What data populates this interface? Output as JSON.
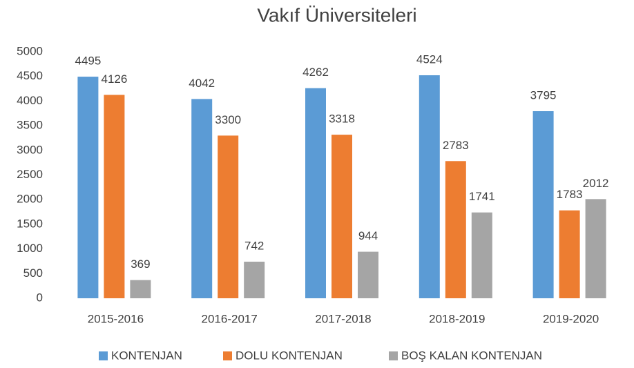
{
  "chart_data": {
    "type": "bar",
    "title": "Vakıf Üniversiteleri",
    "categories": [
      "2015-2016",
      "2016-2017",
      "2017-2018",
      "2018-2019",
      "2019-2020"
    ],
    "series": [
      {
        "name": "KONTENJAN",
        "color": "#5b9bd5",
        "values": [
          4495,
          4042,
          4262,
          4524,
          3795
        ]
      },
      {
        "name": "DOLU KONTENJAN",
        "color": "#ed7d31",
        "values": [
          4126,
          3300,
          3318,
          2783,
          1783
        ]
      },
      {
        "name": "BOŞ KALAN KONTENJAN",
        "color": "#a5a5a5",
        "values": [
          369,
          742,
          944,
          1741,
          2012
        ]
      }
    ],
    "ylim": [
      0,
      5000
    ],
    "yticks": [
      0,
      500,
      1000,
      1500,
      2000,
      2500,
      3000,
      3500,
      4000,
      4500,
      5000
    ],
    "grid": false,
    "legend": "bottom"
  }
}
